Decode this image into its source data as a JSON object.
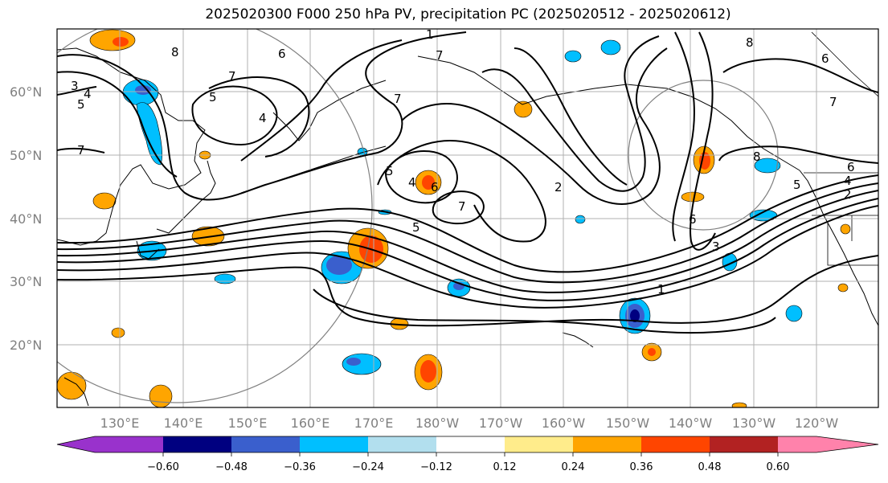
{
  "title": "2025020300 F000 250 hPa PV, precipitation PC (2025020512 - 2025020612)",
  "lat_labels": [
    "60°N",
    "50°N",
    "40°N",
    "30°N",
    "20°N"
  ],
  "lon_labels": [
    "130°E",
    "140°E",
    "150°E",
    "160°E",
    "170°E",
    "180°W",
    "170°W",
    "160°W",
    "150°W",
    "140°W",
    "130°W",
    "120°W"
  ],
  "colorbar": {
    "ticks": [
      "−0.60",
      "−0.48",
      "−0.36",
      "−0.24",
      "−0.12",
      "0.12",
      "0.24",
      "0.36",
      "0.48",
      "0.60"
    ],
    "colors": [
      "#9932cc",
      "#000080",
      "#3a5fcd",
      "#00bfff",
      "#b2dfee",
      "#ffffff",
      "#ffec8b",
      "#ffa500",
      "#ff4500",
      "#b22222",
      "#ff82ab"
    ]
  },
  "contour_labels": [
    "1",
    "2",
    "3",
    "4",
    "5",
    "6",
    "7",
    "8"
  ],
  "contour_label_texts": [
    "3",
    "4",
    "5",
    "7",
    "5",
    "4",
    "8",
    "7",
    "6",
    "1",
    "7",
    "7",
    "5",
    "4",
    "6",
    "7",
    "5",
    "2",
    "6",
    "8",
    "6",
    "5",
    "4",
    "2",
    "7",
    "6",
    "3",
    "1",
    "8"
  ]
}
